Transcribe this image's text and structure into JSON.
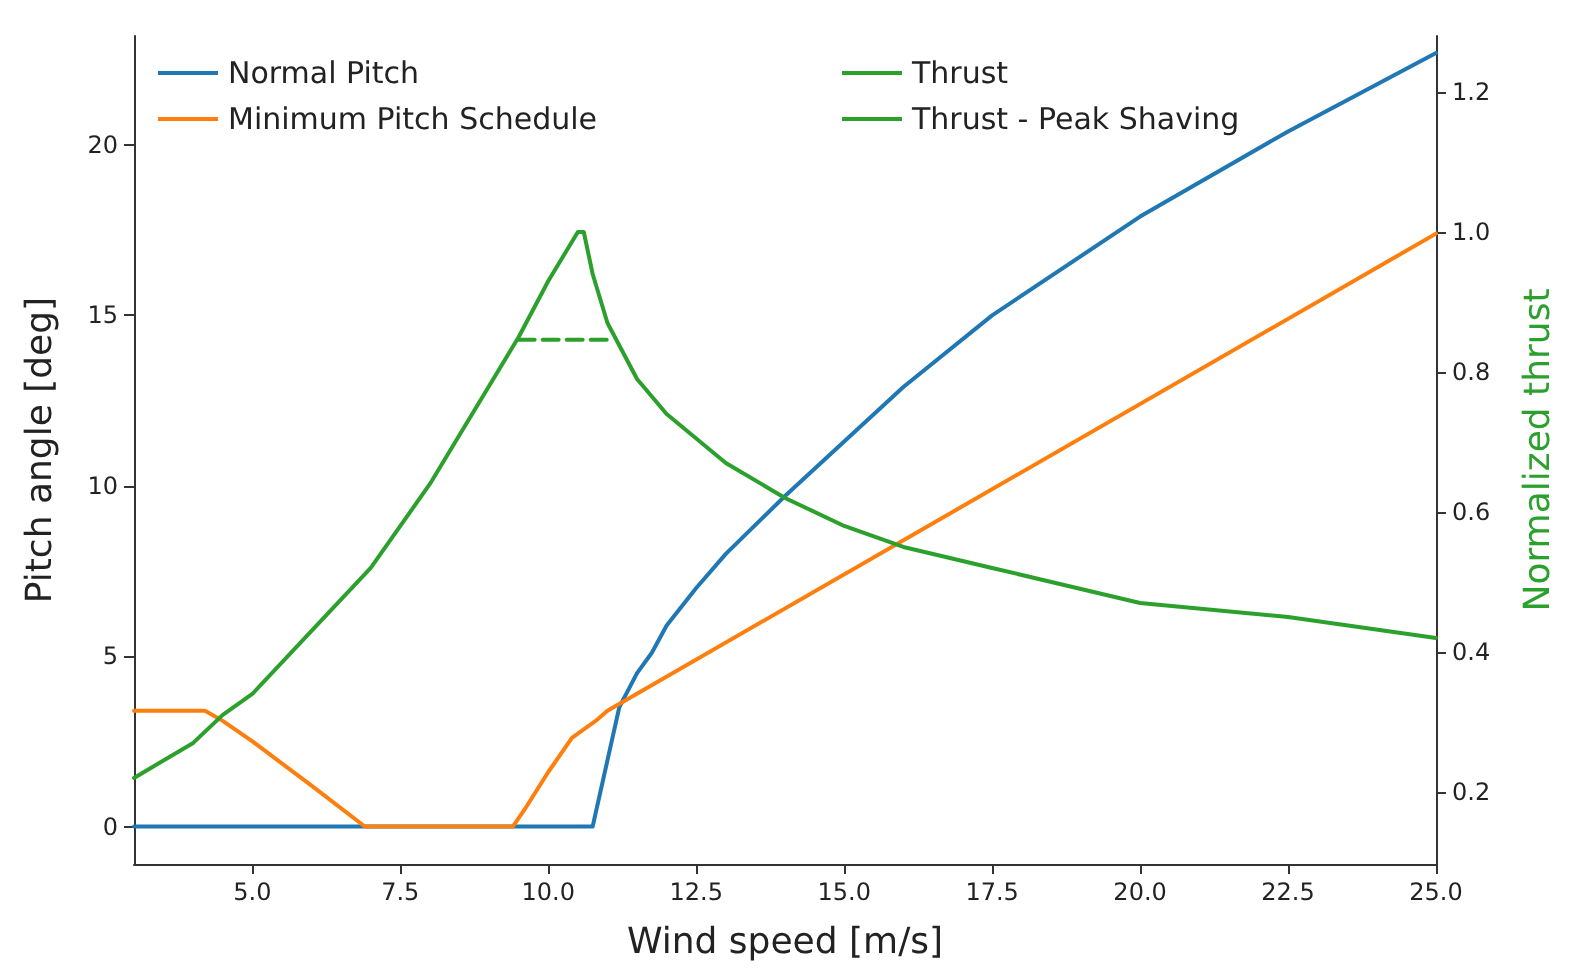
{
  "chart_data": {
    "type": "line",
    "xlabel": "Wind speed [m/s]",
    "ylabel": "Pitch angle [deg]",
    "y2label": "Normalized thrust",
    "xlim": [
      3,
      25
    ],
    "xticks": [
      {
        "value": 5,
        "label": "5.0"
      },
      {
        "value": 7.5,
        "label": "7.5"
      },
      {
        "value": 10,
        "label": "10.0"
      },
      {
        "value": 12.5,
        "label": "12.5"
      },
      {
        "value": 15,
        "label": "15.0"
      },
      {
        "value": 17.5,
        "label": "17.5"
      },
      {
        "value": 20,
        "label": "20.0"
      },
      {
        "value": 22.5,
        "label": "22.5"
      },
      {
        "value": 25,
        "label": "25.0"
      }
    ],
    "ylim": [
      -1.1,
      23.2
    ],
    "yticks": [
      0,
      5,
      10,
      15,
      20
    ],
    "y2lim": [
      0.097,
      1.28
    ],
    "y2ticks": [
      0.2,
      0.4,
      0.6,
      0.8,
      {
        "value": 1,
        "label": "1.0"
      },
      1.2
    ],
    "grid": false,
    "legend": "top left",
    "marker": "none",
    "line_style": "solid",
    "series": [
      {
        "name": "Normal Pitch",
        "color": "#1f77b4",
        "x": [
          3,
          10.75,
          11.2,
          11.5,
          11.75,
          12,
          12.5,
          13,
          14,
          15,
          16,
          17.5,
          20,
          22.5,
          25
        ],
        "values": [
          0,
          0,
          3.5,
          4.5,
          5.1,
          5.9,
          7.0,
          8.0,
          9.7,
          11.3,
          12.9,
          15.0,
          17.9,
          20.4,
          22.7
        ]
      },
      {
        "name": "Minimum Pitch Schedule",
        "color": "#ff7f0e",
        "x": [
          3,
          4.2,
          4.5,
          5,
          6,
          6.9,
          9.4,
          9.6,
          10,
          10.4,
          10.8,
          11,
          25
        ],
        "values": [
          3.4,
          3.4,
          3.1,
          2.5,
          1.2,
          0,
          0,
          0.5,
          1.6,
          2.6,
          3.1,
          3.4,
          17.4
        ]
      },
      {
        "name": "Thrust",
        "color": "#2ca02c",
        "axis": "y2",
        "x": [
          3,
          4,
          4.5,
          5,
          6,
          7,
          8,
          9,
          9.5,
          10,
          10.5,
          10.6,
          10.75,
          11,
          11.5,
          12,
          13,
          14,
          15,
          16,
          17.5,
          20,
          22.5,
          25
        ],
        "values": [
          0.22,
          0.27,
          0.31,
          0.34,
          0.43,
          0.52,
          0.64,
          0.78,
          0.85,
          0.93,
          1.0,
          1.0,
          0.94,
          0.87,
          0.79,
          0.74,
          0.67,
          0.62,
          0.58,
          0.55,
          0.52,
          0.47,
          0.45,
          0.42
        ]
      },
      {
        "name": "Thrust - Peak Shaving",
        "color": "#2ca02c",
        "axis": "y2",
        "line_style": "dashed",
        "x": [
          9.5,
          11.05
        ],
        "values": [
          0.846,
          0.846
        ]
      }
    ]
  }
}
